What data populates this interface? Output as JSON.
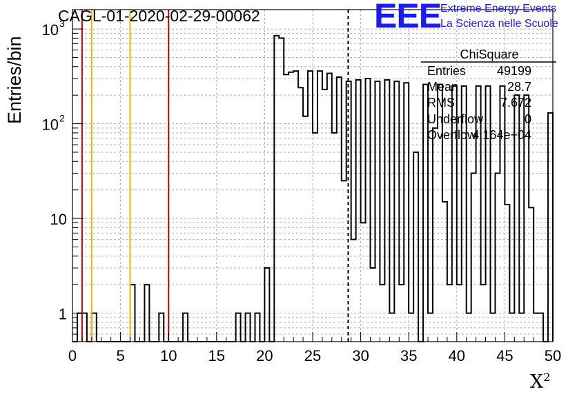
{
  "title": "CAGL-01-2020-02-29-00062",
  "logo": {
    "mark": "EEE",
    "line1": "Extreme Energy Events",
    "line2": "La Scienza nelle Scuole",
    "color": "#1a1aff"
  },
  "stats": {
    "title": "ChiSquare",
    "rows": [
      {
        "name": "Entries",
        "value": "49199"
      },
      {
        "name": "Mean",
        "value": "28.7"
      },
      {
        "name": "RMS",
        "value": "7.672"
      },
      {
        "name": "Underflow",
        "value": "0"
      },
      {
        "name": "Overflow",
        "value": "4.164e+04"
      }
    ]
  },
  "chart_data": {
    "type": "histogram",
    "ylabel": "Entries/bin",
    "xlabel": "X",
    "xlabel_superscript": "2",
    "xlim": [
      0,
      50
    ],
    "ylim": [
      0.5,
      1600
    ],
    "yscale": "log",
    "grid": true,
    "bin_width": 0.5,
    "x_ticks": [
      "0",
      "5",
      "10",
      "15",
      "20",
      "25",
      "30",
      "35",
      "40",
      "45",
      "50"
    ],
    "y_ticks": [
      {
        "value": 1,
        "label": "1"
      },
      {
        "value": 10,
        "label": "10"
      },
      {
        "value": 100,
        "label": "10",
        "exp": "2"
      },
      {
        "value": 1000,
        "label": "10",
        "exp": "3"
      }
    ],
    "bins": [
      {
        "x": 0.5,
        "y": 1
      },
      {
        "x": 1.0,
        "y": 1
      },
      {
        "x": 2.0,
        "y": 1
      },
      {
        "x": 6.0,
        "y": 2
      },
      {
        "x": 7.5,
        "y": 2
      },
      {
        "x": 9.0,
        "y": 1
      },
      {
        "x": 11.5,
        "y": 1
      },
      {
        "x": 17.0,
        "y": 1
      },
      {
        "x": 18.0,
        "y": 1
      },
      {
        "x": 19.0,
        "y": 1
      },
      {
        "x": 20.0,
        "y": 3
      },
      {
        "x": 21.0,
        "y": 850
      },
      {
        "x": 21.5,
        "y": 800
      },
      {
        "x": 22.0,
        "y": 330
      },
      {
        "x": 22.5,
        "y": 350
      },
      {
        "x": 23.0,
        "y": 360
      },
      {
        "x": 23.5,
        "y": 240
      },
      {
        "x": 24.0,
        "y": 120
      },
      {
        "x": 24.5,
        "y": 360
      },
      {
        "x": 25.0,
        "y": 80
      },
      {
        "x": 25.5,
        "y": 360
      },
      {
        "x": 26.0,
        "y": 230
      },
      {
        "x": 26.5,
        "y": 340
      },
      {
        "x": 27.0,
        "y": 80
      },
      {
        "x": 27.5,
        "y": 310
      },
      {
        "x": 28.0,
        "y": 25
      },
      {
        "x": 28.5,
        "y": 280
      },
      {
        "x": 29.0,
        "y": 6
      },
      {
        "x": 29.5,
        "y": 290
      },
      {
        "x": 30.0,
        "y": 9
      },
      {
        "x": 30.5,
        "y": 300
      },
      {
        "x": 31.0,
        "y": 3
      },
      {
        "x": 31.5,
        "y": 280
      },
      {
        "x": 32.0,
        "y": 2
      },
      {
        "x": 32.5,
        "y": 290
      },
      {
        "x": 33.0,
        "y": 1
      },
      {
        "x": 33.5,
        "y": 280
      },
      {
        "x": 34.0,
        "y": 2
      },
      {
        "x": 34.5,
        "y": 270
      },
      {
        "x": 35.0,
        "y": 1
      },
      {
        "x": 35.5,
        "y": 50
      },
      {
        "x": 36.5,
        "y": 260
      },
      {
        "x": 37.0,
        "y": 1
      },
      {
        "x": 37.5,
        "y": 90
      },
      {
        "x": 38.0,
        "y": 260
      },
      {
        "x": 38.5,
        "y": 15
      },
      {
        "x": 39.0,
        "y": 2
      },
      {
        "x": 39.5,
        "y": 250
      },
      {
        "x": 40.0,
        "y": 2
      },
      {
        "x": 40.5,
        "y": 250
      },
      {
        "x": 41.0,
        "y": 1
      },
      {
        "x": 41.5,
        "y": 30
      },
      {
        "x": 42.0,
        "y": 250
      },
      {
        "x": 42.5,
        "y": 2
      },
      {
        "x": 43.0,
        "y": 250
      },
      {
        "x": 43.5,
        "y": 1
      },
      {
        "x": 44.0,
        "y": 30
      },
      {
        "x": 44.5,
        "y": 250
      },
      {
        "x": 45.0,
        "y": 14
      },
      {
        "x": 45.5,
        "y": 1
      },
      {
        "x": 46.0,
        "y": 200
      },
      {
        "x": 46.5,
        "y": 1
      },
      {
        "x": 47.0,
        "y": 200
      },
      {
        "x": 47.5,
        "y": 13
      },
      {
        "x": 48.0,
        "y": 1
      },
      {
        "x": 48.5,
        "y": 1
      },
      {
        "x": 49.5,
        "y": 130
      }
    ],
    "vertical_lines": [
      {
        "x": 1,
        "color": "#cc0000",
        "style": "solid"
      },
      {
        "x": 2,
        "color": "#f0b800",
        "style": "solid"
      },
      {
        "x": 6,
        "color": "#f0b800",
        "style": "solid"
      },
      {
        "x": 10,
        "color": "#cc0000",
        "style": "solid"
      },
      {
        "x": 28.7,
        "color": "#000000",
        "style": "dashed"
      }
    ]
  }
}
